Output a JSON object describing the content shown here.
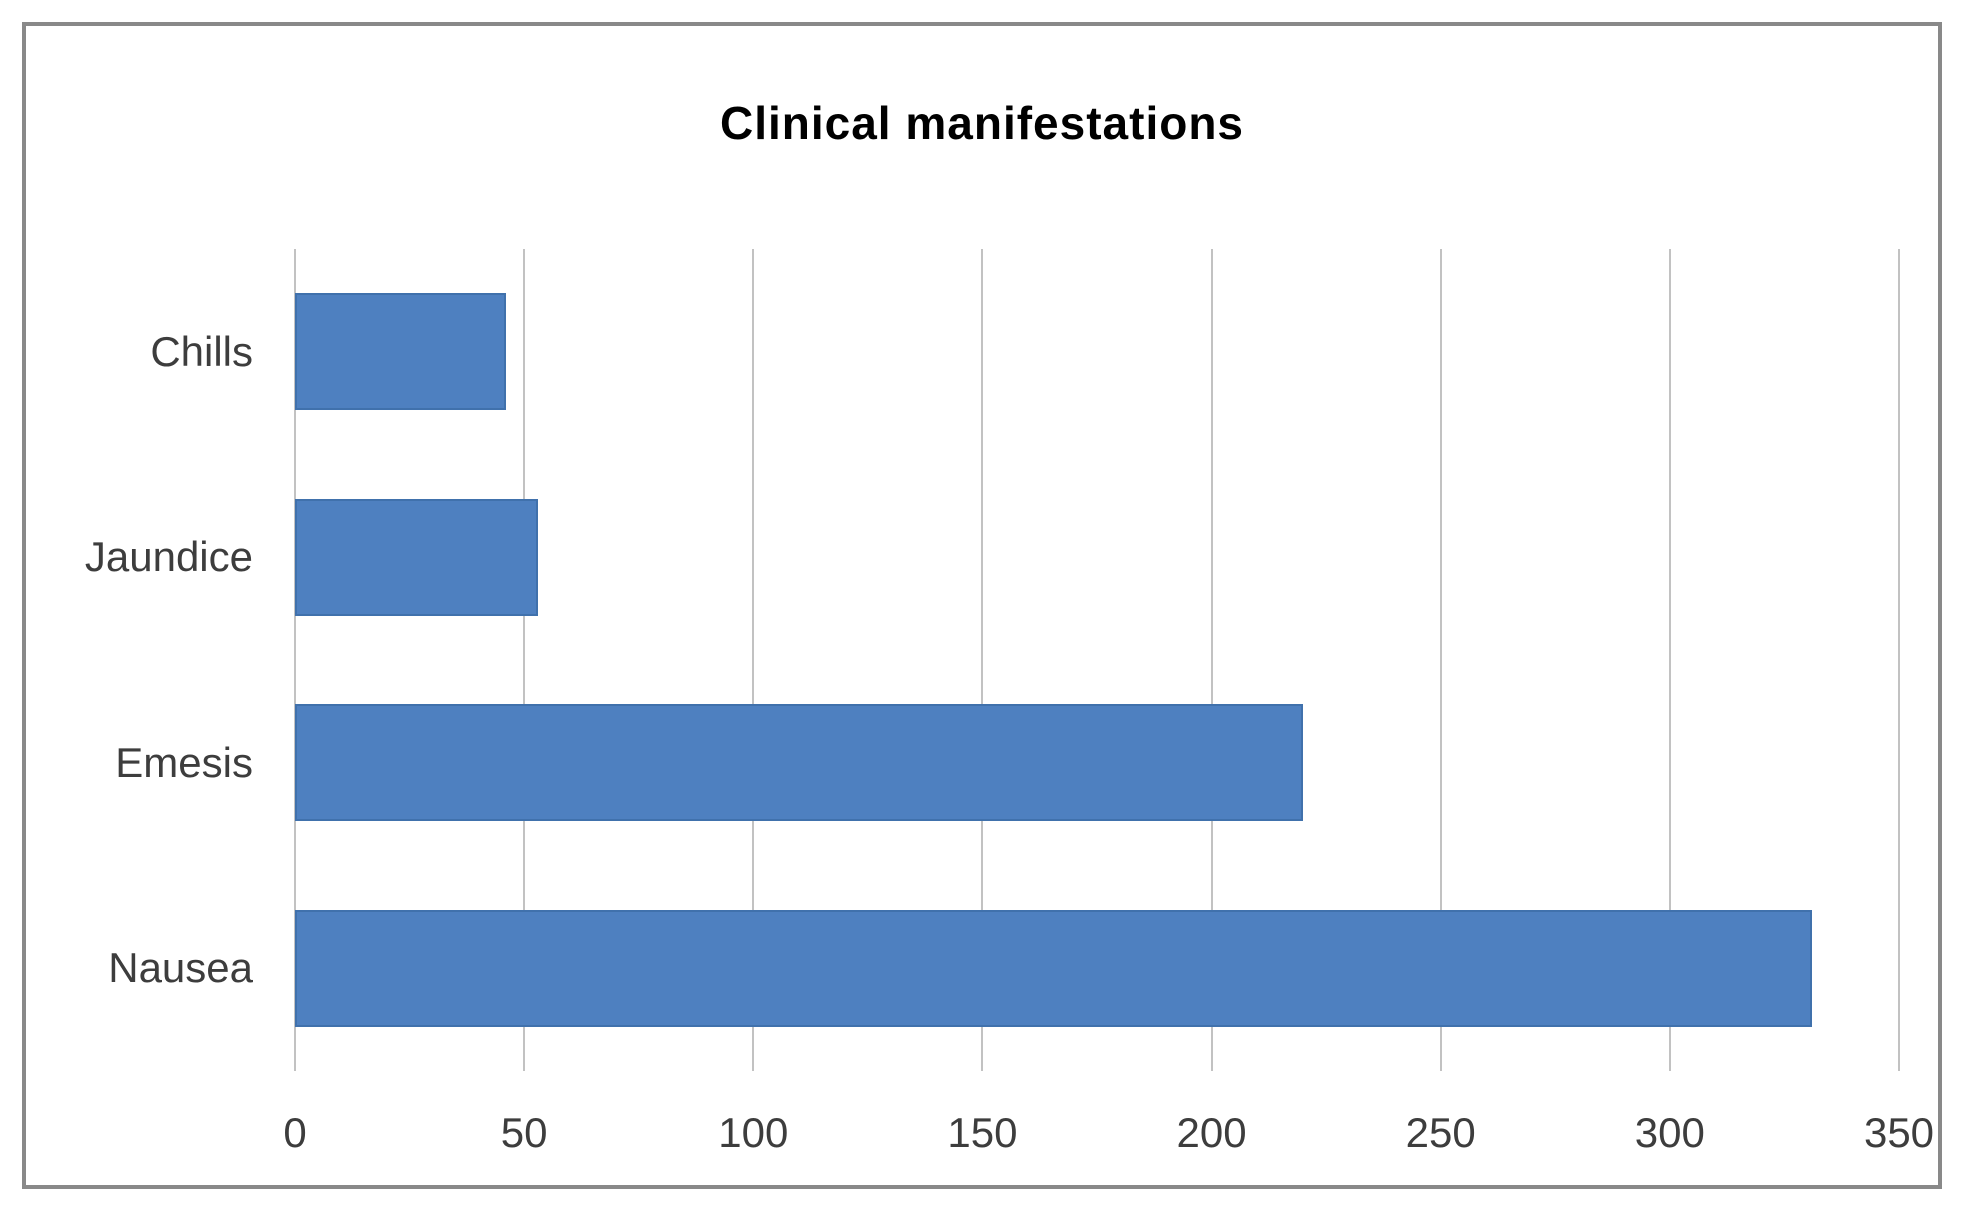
{
  "chart_data": {
    "type": "bar",
    "orientation": "horizontal",
    "title": "Clinical manifestations",
    "categories": [
      "Chills",
      "Jaundice",
      "Emesis",
      "Nausea"
    ],
    "values": [
      46,
      53,
      220,
      331
    ],
    "xlabel": "",
    "ylabel": "",
    "xlim": [
      0,
      350
    ],
    "x_ticks": [
      0,
      50,
      100,
      150,
      200,
      250,
      300,
      350
    ],
    "grid": true,
    "legend": false,
    "colors": {
      "bar_fill": "#4e80c0",
      "bar_border": "#4071ac",
      "gridline": "#c2c2c2",
      "axis_text": "#3d3d3d",
      "title_text": "#000000",
      "frame_border": "#898989",
      "background": "#ffffff"
    }
  }
}
